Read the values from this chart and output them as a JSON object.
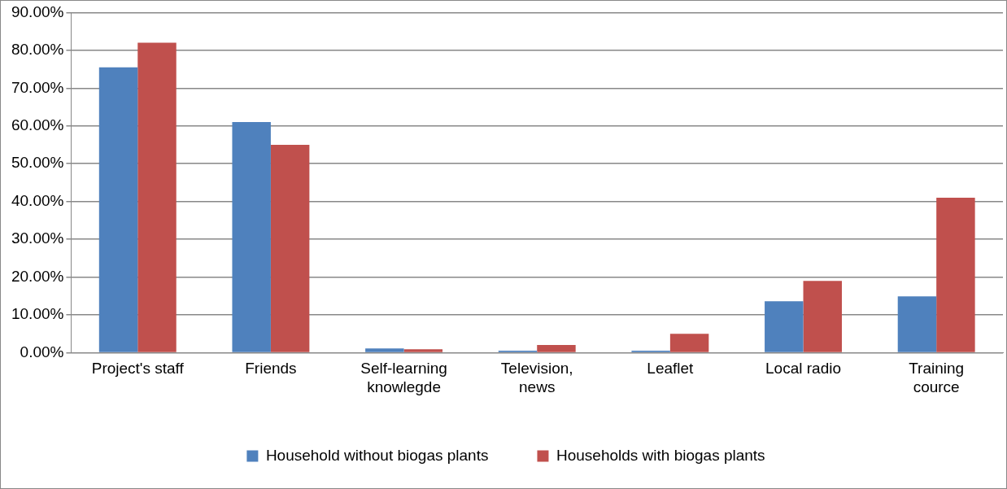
{
  "chart_data": {
    "type": "bar",
    "categories": [
      "Project's staff",
      "Friends",
      "Self-learning knowlegde",
      "Television, news",
      "Leaflet",
      "Local radio",
      "Training cource"
    ],
    "series": [
      {
        "name": "Household without biogas plants",
        "color": "#4f81bd",
        "values": [
          75.5,
          61,
          1.1,
          0.5,
          0.5,
          13.6,
          14.9
        ]
      },
      {
        "name": "Households with biogas plants",
        "color": "#c0504d",
        "values": [
          82,
          55,
          0.9,
          2,
          5,
          19,
          41
        ]
      }
    ],
    "ylim": [
      0,
      90
    ],
    "yticks": [
      {
        "value": 0,
        "label": "0.00%"
      },
      {
        "value": 10,
        "label": "10.00%"
      },
      {
        "value": 20,
        "label": "20.00%"
      },
      {
        "value": 30,
        "label": "30.00%"
      },
      {
        "value": 40,
        "label": "40.00%"
      },
      {
        "value": 50,
        "label": "50.00%"
      },
      {
        "value": 60,
        "label": "60.00%"
      },
      {
        "value": 70,
        "label": "70.00%"
      },
      {
        "value": 80,
        "label": "80.00%"
      },
      {
        "value": 90,
        "label": "90.00%"
      }
    ],
    "grid": "y",
    "legend": "bottom"
  }
}
